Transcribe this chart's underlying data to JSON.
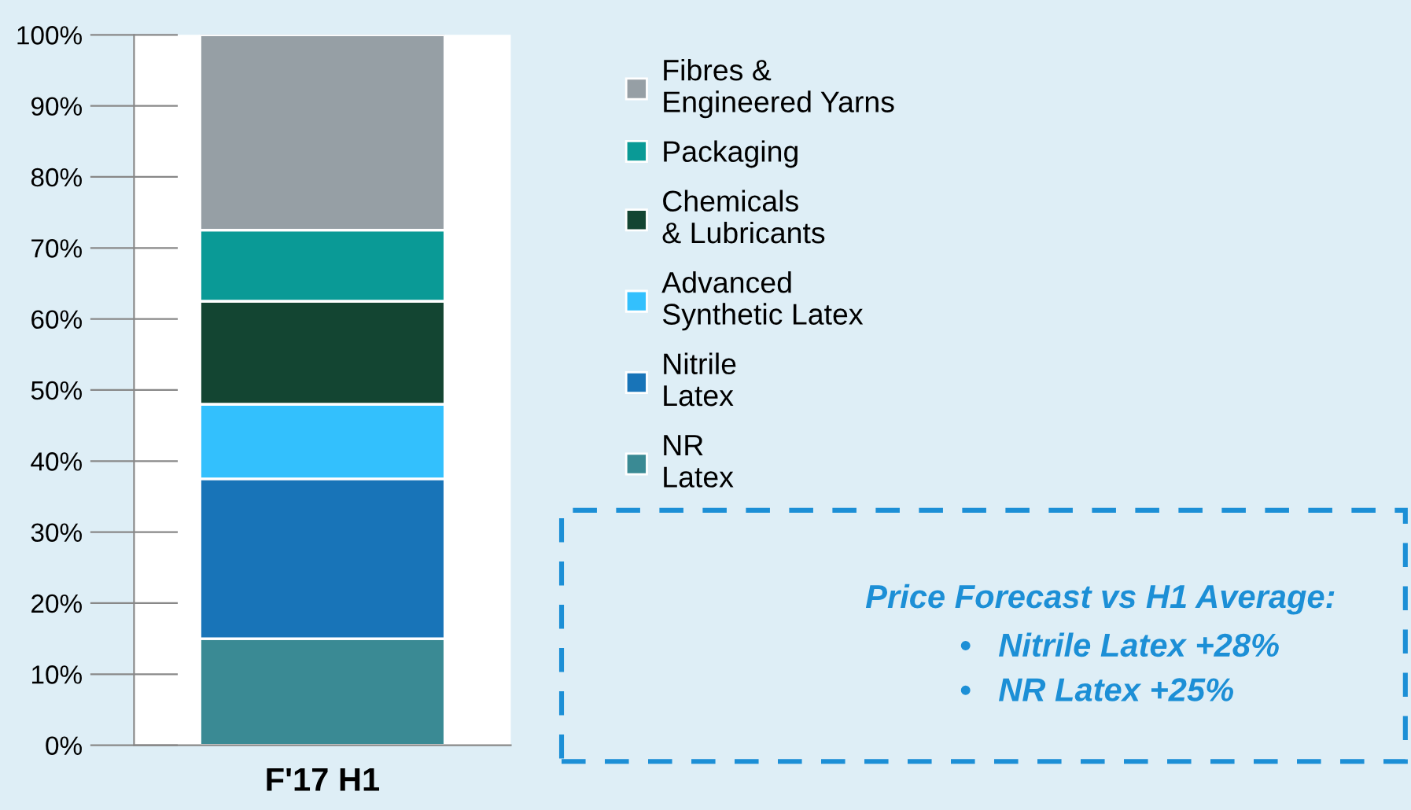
{
  "chart_data": {
    "type": "bar",
    "stacked": true,
    "categories": [
      "F'17 H1"
    ],
    "series": [
      {
        "name": "NR\nLatex",
        "color": "#3a8a94",
        "values": [
          15
        ]
      },
      {
        "name": "Nitrile\nLatex",
        "color": "#1874b8",
        "values": [
          22.5
        ]
      },
      {
        "name": "Advanced\nSynthetic Latex",
        "color": "#33c0fd",
        "values": [
          10.5
        ]
      },
      {
        "name": "Chemicals\n& Lubricants",
        "color": "#134532",
        "values": [
          14.5
        ]
      },
      {
        "name": "Packaging",
        "color": "#0a9a96",
        "values": [
          10
        ]
      },
      {
        "name": "Fibres &\nEngineered Yarns",
        "color": "#969fa5",
        "values": [
          27.5
        ]
      }
    ],
    "ylim": [
      0,
      100
    ],
    "yticks": [
      {
        "value": 0,
        "label": "0%"
      },
      {
        "value": 10,
        "label": "10%"
      },
      {
        "value": 20,
        "label": "20%"
      },
      {
        "value": 30,
        "label": "30%"
      },
      {
        "value": 40,
        "label": "40%"
      },
      {
        "value": 50,
        "label": "50%"
      },
      {
        "value": 60,
        "label": "60%"
      },
      {
        "value": 70,
        "label": "70%"
      },
      {
        "value": 80,
        "label": "80%"
      },
      {
        "value": 90,
        "label": "90%"
      },
      {
        "value": 100,
        "label": "100%"
      }
    ],
    "legend": "right",
    "grid": false,
    "annotations": [
      "Price Forecast vs H1 Average:",
      "•   Nitrile Latex +28%",
      "•   NR Latex +25%"
    ]
  }
}
